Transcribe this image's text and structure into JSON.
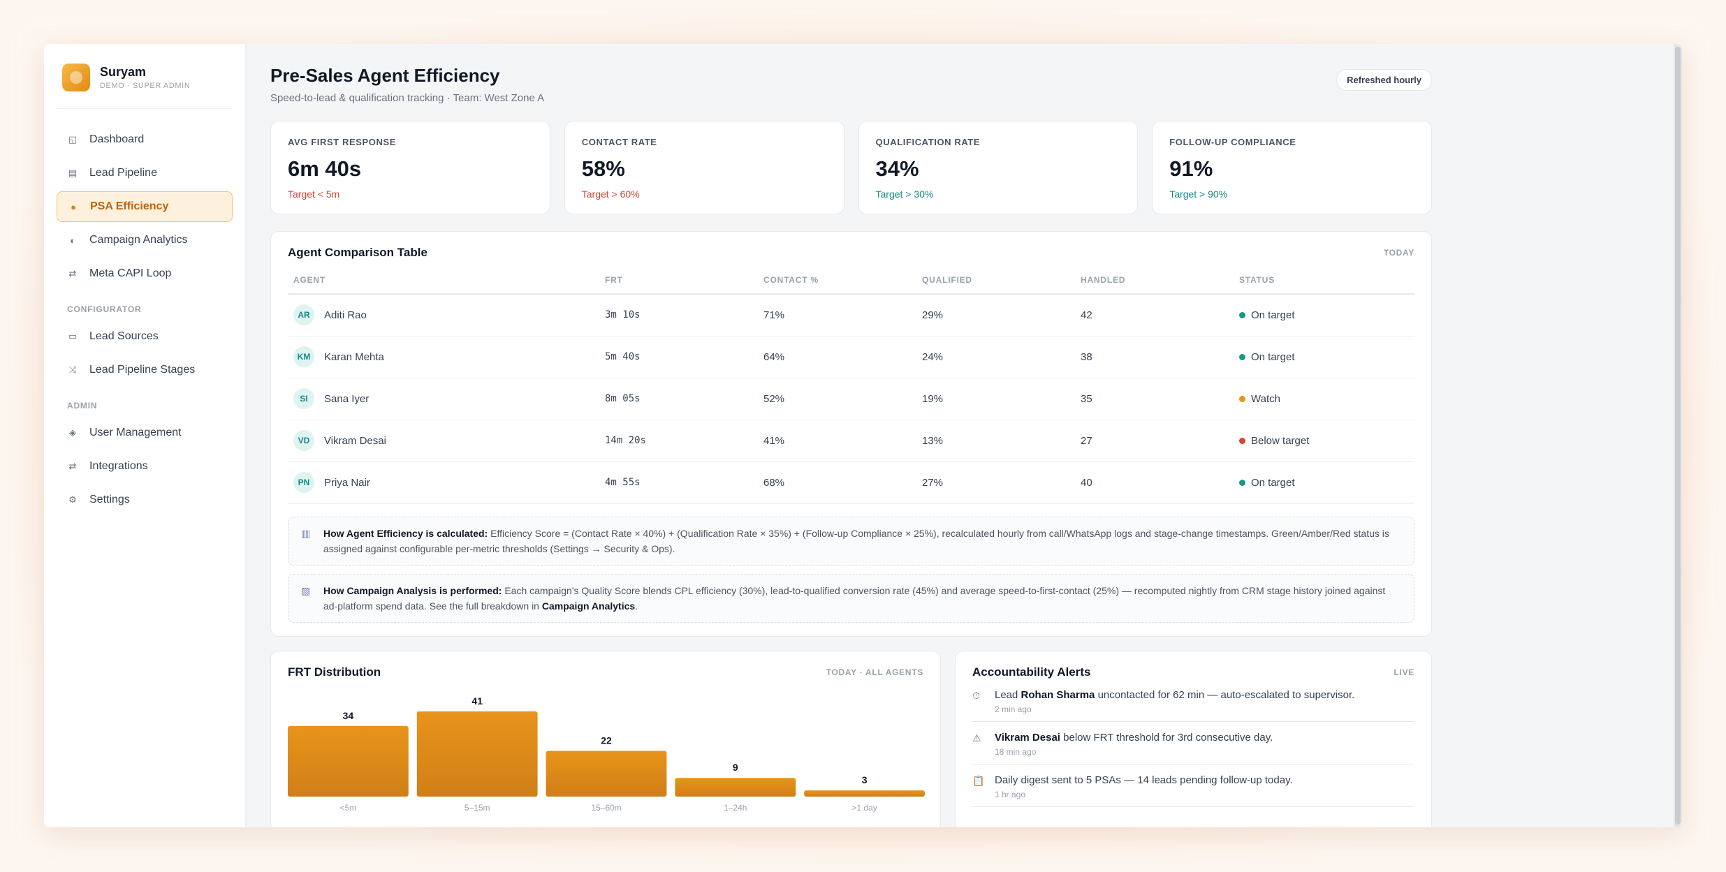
{
  "brand": {
    "name": "Suryam",
    "subtitle": "DEMO · SUPER ADMIN"
  },
  "sidebar": {
    "main_items": [
      {
        "label": "Dashboard",
        "icon": "grid-icon",
        "glyph": "◱"
      },
      {
        "label": "Lead Pipeline",
        "icon": "list-icon",
        "glyph": "▤"
      },
      {
        "label": "PSA Efficiency",
        "icon": "gauge-icon",
        "glyph": "●",
        "active": true
      },
      {
        "label": "Campaign Analytics",
        "icon": "half-circle-icon",
        "glyph": "◐"
      },
      {
        "label": "Meta CAPI Loop",
        "icon": "arrows-icon",
        "glyph": "⇄"
      }
    ],
    "configurator_label": "CONFIGURATOR",
    "configurator_items": [
      {
        "label": "Lead Sources",
        "icon": "tag-icon",
        "glyph": "▭"
      },
      {
        "label": "Lead Pipeline Stages",
        "icon": "shuffle-icon",
        "glyph": "⤨"
      }
    ],
    "admin_label": "ADMIN",
    "admin_items": [
      {
        "label": "User Management",
        "icon": "diamond-icon",
        "glyph": "◈"
      },
      {
        "label": "Integrations",
        "icon": "arrows-icon",
        "glyph": "⇄"
      },
      {
        "label": "Settings",
        "icon": "gear-icon",
        "glyph": "⚙"
      }
    ]
  },
  "header": {
    "title": "Pre-Sales Agent Efficiency",
    "subtitle": "Speed-to-lead & qualification tracking · Team: West Zone A",
    "refresh_badge": "Refreshed hourly"
  },
  "kpis": [
    {
      "label": "AVG FIRST RESPONSE",
      "value": "6m 40s",
      "target": "Target < 5m",
      "status": "red"
    },
    {
      "label": "CONTACT RATE",
      "value": "58%",
      "target": "Target > 60%",
      "status": "red"
    },
    {
      "label": "QUALIFICATION RATE",
      "value": "34%",
      "target": "Target > 30%",
      "status": "teal"
    },
    {
      "label": "FOLLOW-UP COMPLIANCE",
      "value": "91%",
      "target": "Target > 90%",
      "status": "teal"
    }
  ],
  "agent_table": {
    "title": "Agent Comparison Table",
    "tag": "TODAY",
    "columns": [
      "AGENT",
      "FRT",
      "CONTACT %",
      "QUALIFIED",
      "HANDLED",
      "STATUS"
    ],
    "rows": [
      {
        "initials": "AR",
        "name": "Aditi Rao",
        "frt": "3m 10s",
        "contact": "71%",
        "qualified": "29%",
        "handled": "42",
        "status": "On target",
        "status_color": "#17968f"
      },
      {
        "initials": "KM",
        "name": "Karan Mehta",
        "frt": "5m 40s",
        "contact": "64%",
        "qualified": "24%",
        "handled": "38",
        "status": "On target",
        "status_color": "#17968f"
      },
      {
        "initials": "SI",
        "name": "Sana Iyer",
        "frt": "8m 05s",
        "contact": "52%",
        "qualified": "19%",
        "handled": "35",
        "status": "Watch",
        "status_color": "#e8941a"
      },
      {
        "initials": "VD",
        "name": "Vikram Desai",
        "frt": "14m 20s",
        "contact": "41%",
        "qualified": "13%",
        "handled": "27",
        "status": "Below target",
        "status_color": "#d44535"
      },
      {
        "initials": "PN",
        "name": "Priya Nair",
        "frt": "4m 55s",
        "contact": "68%",
        "qualified": "27%",
        "handled": "40",
        "status": "On target",
        "status_color": "#17968f"
      }
    ]
  },
  "notes": [
    {
      "icon": "bar-chart-icon",
      "glyph": "▥",
      "title": "How Agent Efficiency is calculated:",
      "text": " Efficiency Score = (Contact Rate × 40%) + (Qualification Rate × 35%) + (Follow-up Compliance × 25%), recalculated hourly from call/WhatsApp logs and stage-change timestamps. Green/Amber/Red status is assigned against configurable per-metric thresholds (Settings → Security & Ops)."
    },
    {
      "icon": "trend-chart-icon",
      "glyph": "▨",
      "title": "How Campaign Analysis is performed:",
      "text": " Each campaign's Quality Score blends CPL efficiency (30%), lead-to-qualified conversion rate (45%) and average speed-to-first-contact (25%) — recomputed nightly from CRM stage history joined against ad-platform spend data. See the full breakdown in ",
      "link": "Campaign Analytics",
      "tail": "."
    }
  ],
  "chart_data": {
    "type": "bar",
    "title": "FRT Distribution",
    "tag": "TODAY · ALL AGENTS",
    "categories": [
      "<5m",
      "5–15m",
      "15–60m",
      "1–24h",
      ">1 day"
    ],
    "values": [
      34,
      41,
      22,
      9,
      3
    ],
    "ylim": [
      0,
      41
    ],
    "grid": false,
    "legend": "none",
    "bar_color_top": "#e8941a",
    "bar_color_bottom": "#d07f18"
  },
  "alerts": {
    "title": "Accountability Alerts",
    "tag": "LIVE",
    "items": [
      {
        "icon": "clock-icon",
        "glyph": "⏱",
        "pre": "Lead ",
        "bold": "Rohan Sharma",
        "post": " uncontacted for 62 min — auto-escalated to supervisor.",
        "time": "2 min ago"
      },
      {
        "icon": "warning-icon",
        "glyph": "⚠",
        "pre": "",
        "bold": "Vikram Desai",
        "post": " below FRT threshold for 3rd consecutive day.",
        "time": "18 min ago"
      },
      {
        "icon": "clipboard-icon",
        "glyph": "📋",
        "pre": "",
        "bold": "",
        "post": "Daily digest sent to 5 PSAs — 14 leads pending follow-up today.",
        "time": "1 hr ago"
      }
    ]
  }
}
